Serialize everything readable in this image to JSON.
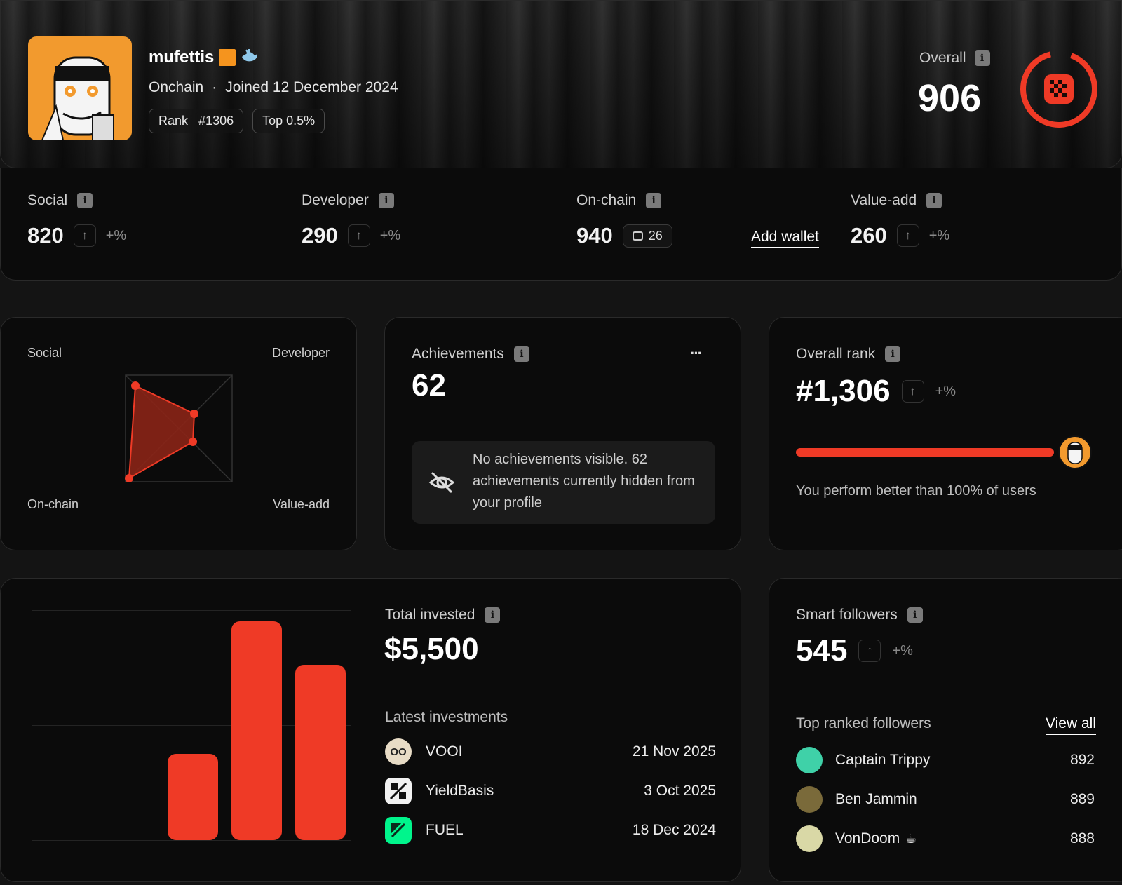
{
  "profile": {
    "username": "mufettis",
    "subtitle_source": "Onchain",
    "joined": "Joined 12 December 2024",
    "rank_label": "Rank",
    "rank_value": "#1306",
    "top_label": "Top 0.5%"
  },
  "overall": {
    "label": "Overall",
    "score": "906"
  },
  "stats": [
    {
      "label": "Social",
      "value": "820",
      "change": "+%"
    },
    {
      "label": "Developer",
      "value": "290",
      "change": "+%"
    },
    {
      "label": "On-chain",
      "value": "940",
      "wallets": "26",
      "action": "Add wallet"
    },
    {
      "label": "Value-add",
      "value": "260",
      "change": "+%"
    }
  ],
  "radar": {
    "labels": {
      "top_left": "Social",
      "top_right": "Developer",
      "bottom_left": "On-chain",
      "bottom_right": "Value-add"
    }
  },
  "achievements": {
    "title": "Achievements",
    "count": "62",
    "menu": "···",
    "notice": "No achievements visible. 62 achievements currently hidden from your profile"
  },
  "rank_card": {
    "title": "Overall rank",
    "value": "#1,306",
    "change": "+%",
    "progress": 1.0,
    "caption": "You perform better than 100% of users"
  },
  "invested": {
    "title": "Total invested",
    "amount": "$5,500",
    "latest_title": "Latest investments",
    "items": [
      {
        "name": "VOOI",
        "date": "21 Nov 2025"
      },
      {
        "name": "YieldBasis",
        "date": "3 Oct 2025"
      },
      {
        "name": "FUEL",
        "date": "18 Dec 2024"
      }
    ]
  },
  "chart_data": {
    "type": "bar",
    "categories": [
      "",
      "",
      ""
    ],
    "values": [
      30,
      76,
      61
    ],
    "ylim": [
      0,
      80
    ],
    "title": "",
    "xlabel": "",
    "ylabel": "",
    "grid": true
  },
  "followers": {
    "title": "Smart followers",
    "count": "545",
    "change": "+%",
    "top_title": "Top ranked followers",
    "view_all": "View all",
    "items": [
      {
        "name": "Captain Trippy",
        "score": "892"
      },
      {
        "name": "Ben Jammin",
        "score": "889"
      },
      {
        "name": "VonDoom",
        "score": "888"
      }
    ]
  },
  "colors": {
    "accent": "#ef3a26",
    "avatar_bg": "#f29a2e",
    "card_bg": "#0b0b0b"
  }
}
